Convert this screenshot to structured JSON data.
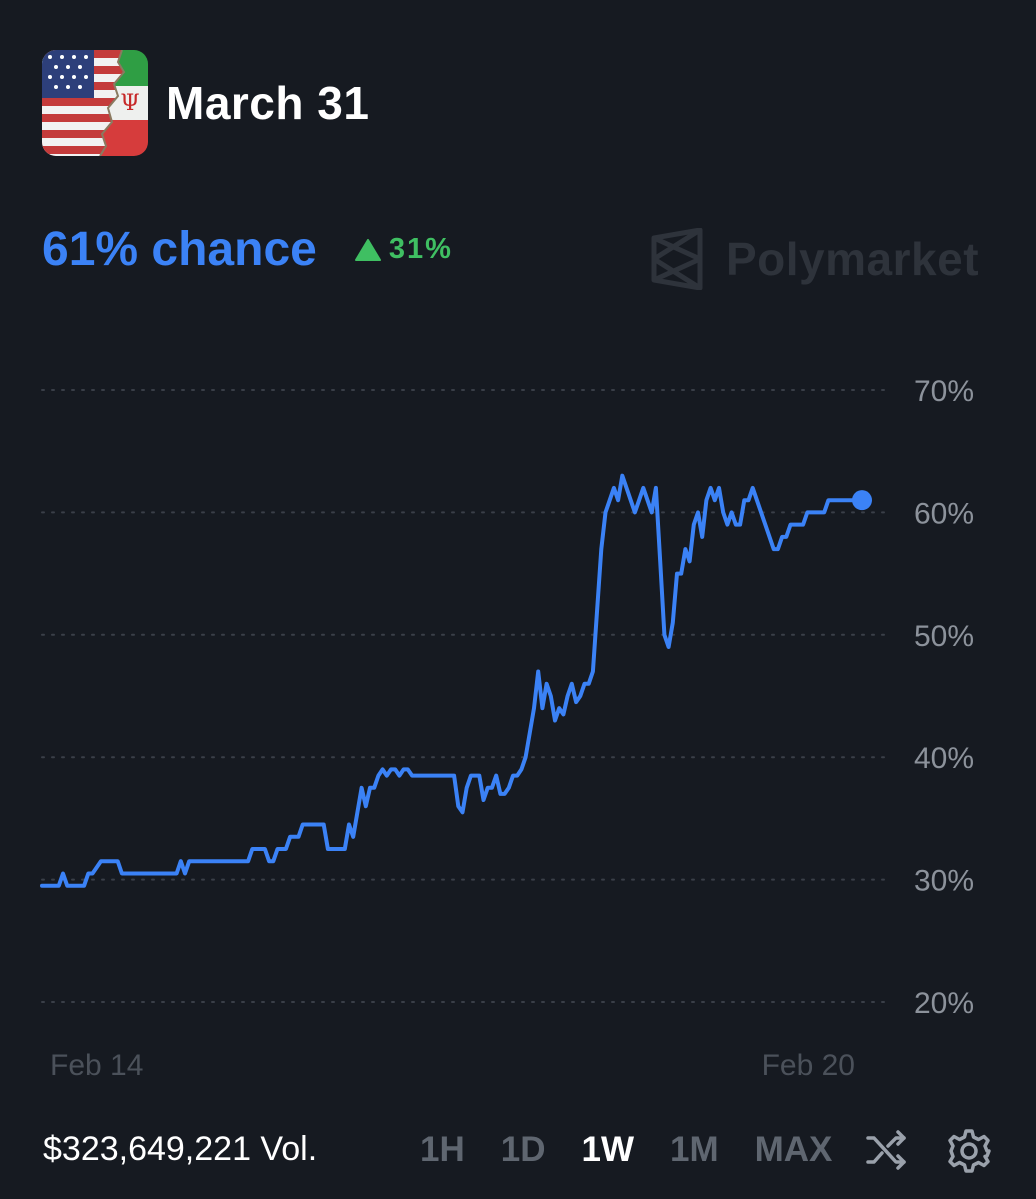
{
  "header": {
    "title": "March 31",
    "flag_icon": "us-iran-flag-icon"
  },
  "stats": {
    "chance": "61% chance",
    "change": "31%",
    "change_color": "#3fbf62",
    "accent": "#3b82f6"
  },
  "brand": {
    "name": "Polymarket",
    "logo_icon": "polymarket-logo-icon"
  },
  "footer": {
    "volume": "$323,649,221 Vol.",
    "ranges": [
      "1H",
      "1D",
      "1W",
      "1M",
      "MAX"
    ],
    "active_range": "1W",
    "shuffle_icon": "shuffle-icon",
    "settings_icon": "gear-icon"
  },
  "chart_data": {
    "type": "line",
    "y_ticks": [
      "70%",
      "60%",
      "50%",
      "40%",
      "30%",
      "20%"
    ],
    "y_tick_values": [
      70,
      60,
      50,
      40,
      30,
      20
    ],
    "ylim": [
      20,
      70
    ],
    "x_labels": [
      "Feb 14",
      "Feb 20"
    ],
    "grid": "dotted horizontal",
    "line_color": "#3b82f6",
    "series": [
      {
        "values": [
          29.5,
          29.5,
          29.5,
          29.5,
          29.5,
          30.5,
          29.5,
          29.5,
          29.5,
          29.5,
          29.5,
          30.5,
          30.5,
          31,
          31.5,
          31.5,
          31.5,
          31.5,
          31.5,
          30.5,
          30.5,
          30.5,
          30.5,
          30.5,
          30.5,
          30.5,
          30.5,
          30.5,
          30.5,
          30.5,
          30.5,
          30.5,
          30.5,
          31.5,
          30.5,
          31.5,
          31.5,
          31.5,
          31.5,
          31.5,
          31.5,
          31.5,
          31.5,
          31.5,
          31.5,
          31.5,
          31.5,
          31.5,
          31.5,
          31.5,
          32.5,
          32.5,
          32.5,
          32.5,
          31.5,
          31.5,
          32.5,
          32.5,
          32.5,
          33.5,
          33.5,
          33.5,
          34.5,
          34.5,
          34.5,
          34.5,
          34.5,
          34.5,
          32.5,
          32.5,
          32.5,
          32.5,
          32.5,
          34.5,
          33.5,
          35.5,
          37.5,
          36,
          37.5,
          37.5,
          38.5,
          39,
          38.5,
          39,
          39,
          38.5,
          39,
          39,
          38.5,
          38.5,
          38.5,
          38.5,
          38.5,
          38.5,
          38.5,
          38.5,
          38.5,
          38.5,
          38.5,
          36,
          35.5,
          37.5,
          38.5,
          38.5,
          38.5,
          36.5,
          37.5,
          37.5,
          38.5,
          37,
          37,
          37.5,
          38.5,
          38.5,
          39,
          40,
          42,
          44,
          47,
          44,
          46,
          45,
          43,
          44,
          43.5,
          45,
          46,
          44.5,
          45,
          46,
          46,
          47,
          52,
          57,
          60,
          61,
          62,
          61,
          63,
          62,
          61,
          60,
          61,
          62,
          61,
          60,
          62,
          56,
          50,
          49,
          51,
          55,
          55,
          57,
          56,
          59,
          60,
          58,
          61,
          62,
          61,
          62,
          60,
          59,
          60,
          59,
          59,
          61,
          61,
          62,
          61,
          60,
          59,
          58,
          57,
          57,
          58,
          58,
          59,
          59,
          59,
          59,
          60,
          60,
          60,
          60,
          60,
          61,
          61,
          61,
          61,
          61,
          61,
          61,
          61,
          61
        ]
      }
    ]
  }
}
